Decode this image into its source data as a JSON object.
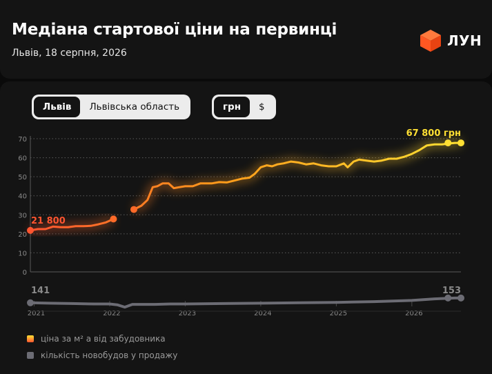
{
  "header": {
    "title": "Медіана стартової ціни на первинці",
    "subtitle": "Львів, 18 серпня, 2026",
    "logo_text": "ЛУН"
  },
  "controls": {
    "region": {
      "options": [
        "Львів",
        "Львівська область"
      ],
      "selected": "Львів"
    },
    "currency": {
      "options": [
        "грн",
        "$"
      ],
      "selected": "грн"
    }
  },
  "colors": {
    "price_start": "#ff5530",
    "price_mid": "#ff9c1a",
    "price_end": "#ffe033",
    "count_line": "#6c6c74"
  },
  "chart_data": {
    "type": "line",
    "ylim": [
      0,
      70
    ],
    "y_ticks": [
      "0",
      "10",
      "20",
      "30",
      "40",
      "50",
      "60",
      "70"
    ],
    "x_ticks": [
      "2021",
      "2022",
      "2023",
      "2024",
      "2025",
      "2026"
    ],
    "annotations": {
      "start_price": "21 800",
      "end_price": "67 800 грн",
      "start_count": "141",
      "end_count": "153"
    },
    "series": [
      {
        "name": "ціна за м² а від забудовника",
        "unit": "тис. грн",
        "segments": [
          {
            "x": [
              2020.95,
              2021.05,
              2021.15,
              2021.25,
              2021.35,
              2021.45,
              2021.55,
              2021.65,
              2021.75,
              2021.85,
              2021.95,
              2022.05
            ],
            "y": [
              21.8,
              22.5,
              22.5,
              23.8,
              23.5,
              23.5,
              24.0,
              24.0,
              24.2,
              25.0,
              26.0,
              27.8
            ]
          },
          {
            "x": [
              2022.32,
              2022.42,
              2022.5,
              2022.57,
              2022.63,
              2022.7,
              2022.78,
              2022.85,
              2022.92,
              2023.0,
              2023.1,
              2023.2,
              2023.3,
              2023.35,
              2023.45,
              2023.55,
              2023.65,
              2023.75,
              2023.85,
              2023.92,
              2024.0,
              2024.08,
              2024.15,
              2024.22,
              2024.3,
              2024.4,
              2024.5,
              2024.6,
              2024.7,
              2024.8,
              2024.9,
              2025.0,
              2025.1,
              2025.15,
              2025.23,
              2025.3,
              2025.4,
              2025.5,
              2025.6,
              2025.7,
              2025.8,
              2025.9,
              2026.0,
              2026.1,
              2026.2,
              2026.3,
              2026.4,
              2026.5,
              2026.57,
              2026.65
            ],
            "y": [
              32.8,
              34.8,
              37.8,
              44.5,
              45.0,
              46.5,
              46.5,
              44.0,
              44.5,
              45.0,
              45.0,
              46.5,
              46.5,
              46.5,
              47.2,
              47.0,
              48.0,
              49.0,
              49.5,
              51.5,
              55.0,
              56.0,
              55.5,
              56.5,
              57.0,
              58.0,
              57.5,
              56.5,
              57.0,
              56.0,
              55.5,
              55.5,
              57.0,
              55.0,
              58.0,
              59.0,
              58.5,
              58.0,
              58.5,
              59.5,
              59.5,
              60.5,
              62.0,
              64.0,
              66.5,
              67.0,
              67.0,
              67.5,
              67.8,
              67.8
            ]
          }
        ]
      },
      {
        "name": "кількість новобудов у продажу",
        "x": [
          2020.95,
          2021.2,
          2021.5,
          2021.8,
          2022.0,
          2022.1,
          2022.2,
          2022.3,
          2022.4,
          2022.6,
          2022.8,
          2023.0,
          2023.5,
          2024.0,
          2024.5,
          2025.0,
          2025.5,
          2026.0,
          2026.3,
          2026.57,
          2026.65
        ],
        "y": [
          141,
          140,
          139,
          138,
          138,
          136,
          130,
          137,
          137,
          137,
          138,
          138,
          139,
          140,
          141,
          142,
          144,
          147,
          151,
          153,
          153
        ]
      }
    ]
  }
}
